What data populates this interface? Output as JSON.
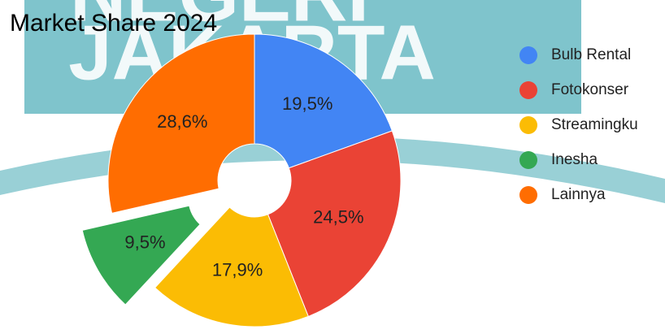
{
  "watermark": [
    "NEGERI",
    "JAKARTA"
  ],
  "chart_data": {
    "type": "pie",
    "title": "Market Share 2024",
    "categories": [
      "Bulb Rental",
      "Fotokonser",
      "Streamingku",
      "Inesha",
      "Lainnya"
    ],
    "values": [
      19.5,
      24.5,
      17.9,
      9.5,
      28.6
    ],
    "value_labels": [
      "19,5%",
      "24,5%",
      "17,9%",
      "9,5%",
      "28,6%"
    ],
    "colors": [
      "#4285f4",
      "#ea4335",
      "#fbbc04",
      "#34a853",
      "#ff6d01"
    ],
    "donut": true,
    "exploded": [
      3
    ],
    "legend": "right"
  }
}
